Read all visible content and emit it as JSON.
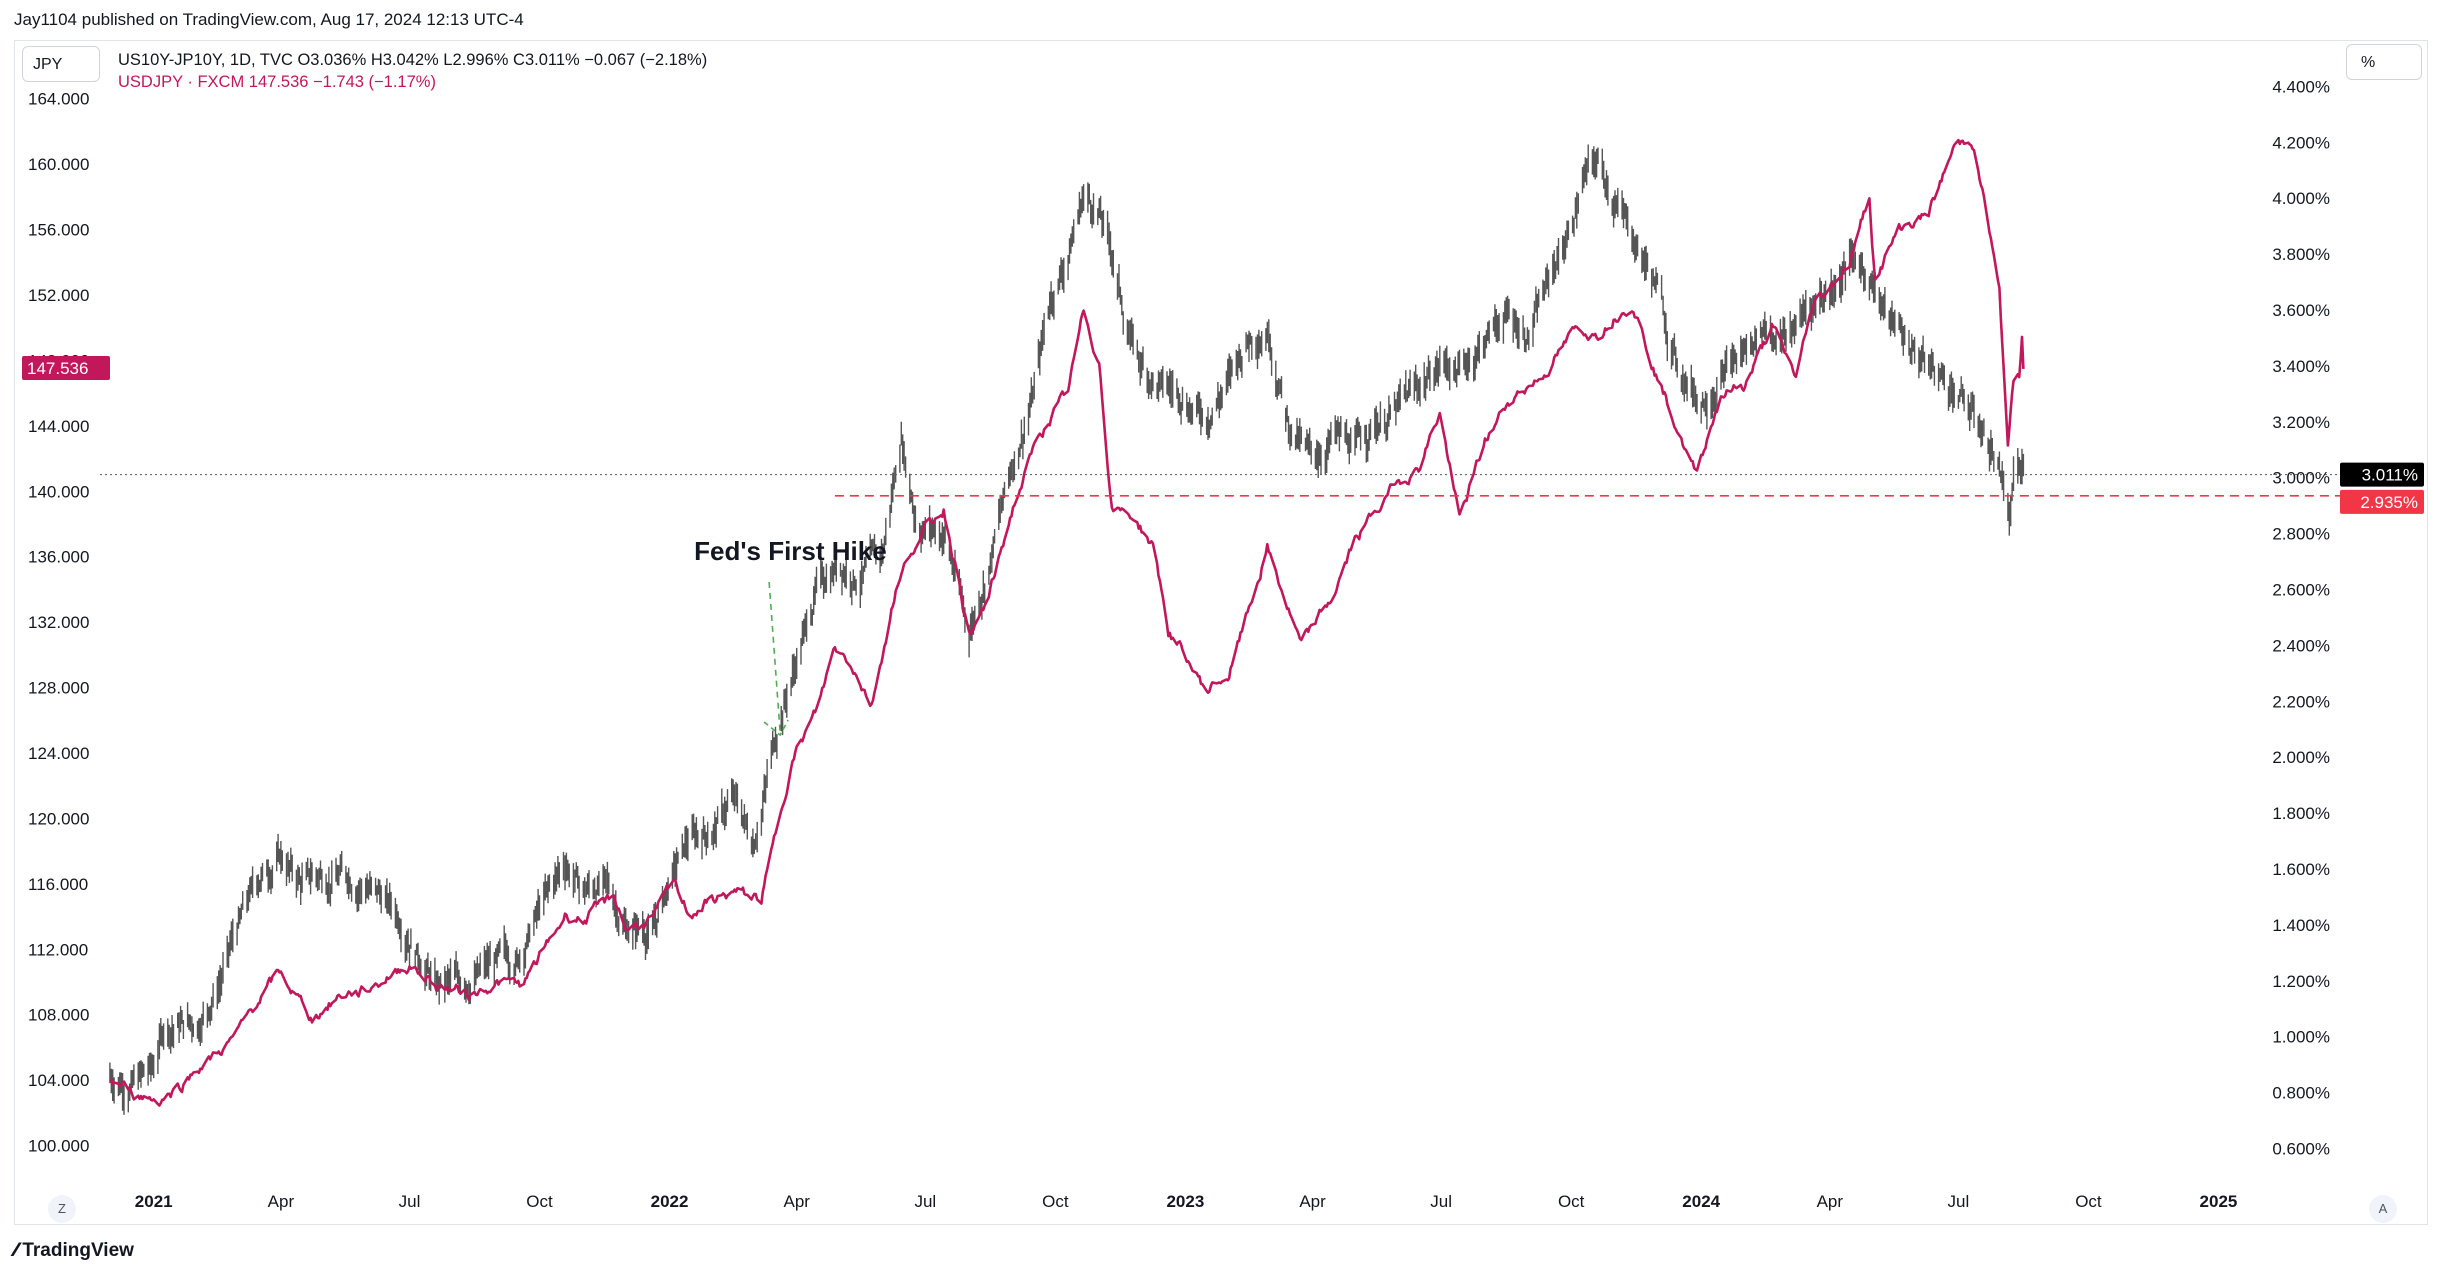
{
  "publisher_line": "Jay1104 published on TradingView.com, Aug 17, 2024 12:13 UTC-4",
  "left_scale_button": "JPY",
  "right_scale_button": "%",
  "legend": {
    "line1": "US10Y-JP10Y, 1D, TVC  O3.036%  H3.042%  L2.996%  C3.011%  −0.067 (−2.18%)",
    "line2": "USDJPY · FXCM  147.536  −1.743 (−1.17%)"
  },
  "bottom_left_button": "Z",
  "bottom_right_button": "A",
  "brand": "TradingView",
  "annotation": "Fed's First Hike",
  "colors": {
    "spread_series": "#555555",
    "usdjpy_series": "#c2185b",
    "support_line": "#f23645",
    "annotation_arrow": "#4caf50",
    "last_price_spread": "#000000",
    "last_price_usdjpy": "#c2185b"
  },
  "chart_data": {
    "type": "line",
    "x_ticks": [
      {
        "label": "2021",
        "date": "2021-01-01",
        "bold": true
      },
      {
        "label": "Apr",
        "date": "2021-04-01"
      },
      {
        "label": "Jul",
        "date": "2021-07-01"
      },
      {
        "label": "Oct",
        "date": "2021-10-01"
      },
      {
        "label": "2022",
        "date": "2022-01-01",
        "bold": true
      },
      {
        "label": "Apr",
        "date": "2022-04-01"
      },
      {
        "label": "Jul",
        "date": "2022-07-01"
      },
      {
        "label": "Oct",
        "date": "2022-10-01"
      },
      {
        "label": "2023",
        "date": "2023-01-01",
        "bold": true
      },
      {
        "label": "Apr",
        "date": "2023-04-01"
      },
      {
        "label": "Jul",
        "date": "2023-07-01"
      },
      {
        "label": "Oct",
        "date": "2023-10-01"
      },
      {
        "label": "2024",
        "date": "2024-01-01",
        "bold": true
      },
      {
        "label": "Apr",
        "date": "2024-04-01"
      },
      {
        "label": "Jul",
        "date": "2024-07-01"
      },
      {
        "label": "Oct",
        "date": "2024-10-01"
      },
      {
        "label": "2025",
        "date": "2025-01-01",
        "bold": true
      }
    ],
    "x_range": [
      "2020-11-24",
      "2025-03-28"
    ],
    "left_axis": {
      "unit": "JPY",
      "ticks": [
        "164.000",
        "160.000",
        "156.000",
        "152.000",
        "148.000",
        "144.000",
        "140.000",
        "136.000",
        "132.000",
        "128.000",
        "124.000",
        "120.000",
        "116.000",
        "112.000",
        "108.000",
        "104.000",
        "100.000"
      ],
      "range": [
        98.2,
        166.0
      ]
    },
    "right_axis": {
      "unit": "%",
      "ticks": [
        "4.400%",
        "4.200%",
        "4.000%",
        "3.800%",
        "3.600%",
        "3.400%",
        "3.200%",
        "3.000%",
        "2.800%",
        "2.600%",
        "2.400%",
        "2.200%",
        "2.000%",
        "1.800%",
        "1.600%",
        "1.400%",
        "1.200%",
        "1.000%",
        "0.800%",
        "0.600%"
      ],
      "range": [
        0.505,
        4.473
      ]
    },
    "last_values": {
      "usdjpy": "147.536",
      "spread": "3.011%",
      "support": "2.935%"
    },
    "support_level_pct": 2.935,
    "support_start": "2022-04-28",
    "annotation_date": "2022-03-16",
    "series": [
      {
        "name": "US10Y-JP10Y",
        "axis": "right",
        "points": [
          [
            "2020-12-01",
            0.86
          ],
          [
            "2020-12-15",
            0.84
          ],
          [
            "2021-01-01",
            0.88
          ],
          [
            "2021-01-08",
            1.03
          ],
          [
            "2021-01-20",
            1.05
          ],
          [
            "2021-02-01",
            1.05
          ],
          [
            "2021-02-15",
            1.18
          ],
          [
            "2021-03-01",
            1.38
          ],
          [
            "2021-03-15",
            1.55
          ],
          [
            "2021-03-31",
            1.65
          ],
          [
            "2021-04-15",
            1.55
          ],
          [
            "2021-05-01",
            1.58
          ],
          [
            "2021-05-15",
            1.58
          ],
          [
            "2021-06-01",
            1.55
          ],
          [
            "2021-06-15",
            1.48
          ],
          [
            "2021-07-01",
            1.38
          ],
          [
            "2021-07-20",
            1.18
          ],
          [
            "2021-08-01",
            1.18
          ],
          [
            "2021-08-15",
            1.22
          ],
          [
            "2021-09-01",
            1.26
          ],
          [
            "2021-09-15",
            1.28
          ],
          [
            "2021-10-01",
            1.45
          ],
          [
            "2021-10-20",
            1.62
          ],
          [
            "2021-11-01",
            1.52
          ],
          [
            "2021-11-15",
            1.55
          ],
          [
            "2021-12-01",
            1.4
          ],
          [
            "2021-12-20",
            1.38
          ],
          [
            "2022-01-01",
            1.55
          ],
          [
            "2022-01-15",
            1.7
          ],
          [
            "2022-02-01",
            1.75
          ],
          [
            "2022-02-15",
            1.85
          ],
          [
            "2022-03-01",
            1.7
          ],
          [
            "2022-03-10",
            1.9
          ],
          [
            "2022-03-20",
            2.15
          ],
          [
            "2022-04-01",
            2.35
          ],
          [
            "2022-04-15",
            2.6
          ],
          [
            "2022-05-01",
            2.7
          ],
          [
            "2022-05-15",
            2.65
          ],
          [
            "2022-06-01",
            2.72
          ],
          [
            "2022-06-14",
            3.15
          ],
          [
            "2022-06-25",
            2.85
          ],
          [
            "2022-07-15",
            2.8
          ],
          [
            "2022-08-01",
            2.45
          ],
          [
            "2022-08-15",
            2.7
          ],
          [
            "2022-09-01",
            3.05
          ],
          [
            "2022-09-15",
            3.3
          ],
          [
            "2022-09-28",
            3.65
          ],
          [
            "2022-10-10",
            3.8
          ],
          [
            "2022-10-21",
            4.02
          ],
          [
            "2022-11-01",
            3.95
          ],
          [
            "2022-11-10",
            3.8
          ],
          [
            "2022-11-20",
            3.55
          ],
          [
            "2022-12-01",
            3.4
          ],
          [
            "2022-12-15",
            3.32
          ],
          [
            "2022-12-31",
            3.3
          ],
          [
            "2023-01-15",
            3.22
          ],
          [
            "2023-02-01",
            3.35
          ],
          [
            "2023-02-15",
            3.5
          ],
          [
            "2023-03-01",
            3.55
          ],
          [
            "2023-03-15",
            3.2
          ],
          [
            "2023-04-01",
            3.05
          ],
          [
            "2023-04-15",
            3.15
          ],
          [
            "2023-05-01",
            3.1
          ],
          [
            "2023-05-15",
            3.2
          ],
          [
            "2023-06-01",
            3.25
          ],
          [
            "2023-06-15",
            3.32
          ],
          [
            "2023-07-01",
            3.42
          ],
          [
            "2023-07-15",
            3.38
          ],
          [
            "2023-08-01",
            3.5
          ],
          [
            "2023-08-15",
            3.58
          ],
          [
            "2023-09-01",
            3.52
          ],
          [
            "2023-09-15",
            3.7
          ],
          [
            "2023-10-01",
            3.9
          ],
          [
            "2023-10-10",
            4.08
          ],
          [
            "2023-10-20",
            4.12
          ],
          [
            "2023-11-01",
            4.0
          ],
          [
            "2023-11-15",
            3.85
          ],
          [
            "2023-12-01",
            3.68
          ],
          [
            "2023-12-15",
            3.4
          ],
          [
            "2024-01-01",
            3.28
          ],
          [
            "2024-01-15",
            3.38
          ],
          [
            "2024-02-01",
            3.45
          ],
          [
            "2024-02-15",
            3.55
          ],
          [
            "2024-03-01",
            3.5
          ],
          [
            "2024-03-15",
            3.6
          ],
          [
            "2024-04-01",
            3.68
          ],
          [
            "2024-04-15",
            3.78
          ],
          [
            "2024-05-01",
            3.72
          ],
          [
            "2024-05-15",
            3.55
          ],
          [
            "2024-06-01",
            3.45
          ],
          [
            "2024-06-15",
            3.38
          ],
          [
            "2024-07-01",
            3.3
          ],
          [
            "2024-07-15",
            3.2
          ],
          [
            "2024-07-25",
            3.1
          ],
          [
            "2024-08-02",
            3.0
          ],
          [
            "2024-08-06",
            2.85
          ],
          [
            "2024-08-09",
            2.98
          ],
          [
            "2024-08-16",
            3.011
          ]
        ]
      },
      {
        "name": "USDJPY",
        "axis": "left",
        "points": [
          [
            "2020-12-01",
            104.0
          ],
          [
            "2020-12-15",
            103.3
          ],
          [
            "2021-01-05",
            102.8
          ],
          [
            "2021-01-20",
            103.7
          ],
          [
            "2021-02-01",
            104.8
          ],
          [
            "2021-02-15",
            105.6
          ],
          [
            "2021-03-01",
            106.8
          ],
          [
            "2021-03-15",
            108.8
          ],
          [
            "2021-03-31",
            110.5
          ],
          [
            "2021-04-15",
            108.8
          ],
          [
            "2021-04-23",
            107.8
          ],
          [
            "2021-05-15",
            109.3
          ],
          [
            "2021-06-01",
            109.5
          ],
          [
            "2021-06-20",
            110.6
          ],
          [
            "2021-07-01",
            111.1
          ],
          [
            "2021-07-20",
            109.8
          ],
          [
            "2021-08-01",
            109.5
          ],
          [
            "2021-08-15",
            109.3
          ],
          [
            "2021-09-01",
            110.0
          ],
          [
            "2021-09-20",
            109.8
          ],
          [
            "2021-10-01",
            111.5
          ],
          [
            "2021-10-20",
            114.2
          ],
          [
            "2021-11-01",
            113.8
          ],
          [
            "2021-11-23",
            115.2
          ],
          [
            "2021-12-01",
            113.3
          ],
          [
            "2021-12-20",
            113.8
          ],
          [
            "2022-01-04",
            116.0
          ],
          [
            "2022-01-15",
            114.2
          ],
          [
            "2022-02-01",
            115.0
          ],
          [
            "2022-02-15",
            115.5
          ],
          [
            "2022-03-07",
            115.0
          ],
          [
            "2022-03-16",
            118.5
          ],
          [
            "2022-03-28",
            123.5
          ],
          [
            "2022-04-15",
            126.5
          ],
          [
            "2022-04-28",
            130.5
          ],
          [
            "2022-05-10",
            129.5
          ],
          [
            "2022-05-24",
            127.0
          ],
          [
            "2022-06-10",
            134.0
          ],
          [
            "2022-06-22",
            136.5
          ],
          [
            "2022-07-14",
            139.0
          ],
          [
            "2022-08-02",
            131.0
          ],
          [
            "2022-08-15",
            133.5
          ],
          [
            "2022-09-01",
            139.0
          ],
          [
            "2022-09-20",
            143.5
          ],
          [
            "2022-10-10",
            146.0
          ],
          [
            "2022-10-21",
            150.9
          ],
          [
            "2022-11-01",
            148.0
          ],
          [
            "2022-11-10",
            139.0
          ],
          [
            "2022-11-25",
            138.5
          ],
          [
            "2022-12-10",
            136.5
          ],
          [
            "2022-12-20",
            131.5
          ],
          [
            "2023-01-16",
            127.8
          ],
          [
            "2023-02-01",
            128.8
          ],
          [
            "2023-02-28",
            136.5
          ],
          [
            "2023-03-24",
            130.5
          ],
          [
            "2023-04-15",
            133.5
          ],
          [
            "2023-05-01",
            137.0
          ],
          [
            "2023-05-30",
            140.5
          ],
          [
            "2023-06-15",
            141.5
          ],
          [
            "2023-06-30",
            144.8
          ],
          [
            "2023-07-14",
            138.2
          ],
          [
            "2023-08-01",
            143.0
          ],
          [
            "2023-08-20",
            145.8
          ],
          [
            "2023-09-10",
            147.0
          ],
          [
            "2023-10-03",
            149.7
          ],
          [
            "2023-10-20",
            149.8
          ],
          [
            "2023-11-13",
            151.7
          ],
          [
            "2023-12-01",
            147.0
          ],
          [
            "2023-12-28",
            141.0
          ],
          [
            "2024-01-15",
            146.0
          ],
          [
            "2024-02-01",
            146.5
          ],
          [
            "2024-02-20",
            150.0
          ],
          [
            "2024-03-08",
            147.0
          ],
          [
            "2024-03-20",
            151.3
          ],
          [
            "2024-04-15",
            154.0
          ],
          [
            "2024-04-29",
            158.0
          ],
          [
            "2024-05-03",
            153.0
          ],
          [
            "2024-05-20",
            156.0
          ],
          [
            "2024-06-10",
            157.0
          ],
          [
            "2024-06-28",
            161.0
          ],
          [
            "2024-07-10",
            161.7
          ],
          [
            "2024-07-20",
            157.5
          ],
          [
            "2024-07-30",
            152.0
          ],
          [
            "2024-08-05",
            143.0
          ],
          [
            "2024-08-09",
            146.5
          ],
          [
            "2024-08-13",
            147.0
          ],
          [
            "2024-08-15",
            149.2
          ],
          [
            "2024-08-16",
            147.536
          ]
        ]
      }
    ]
  }
}
